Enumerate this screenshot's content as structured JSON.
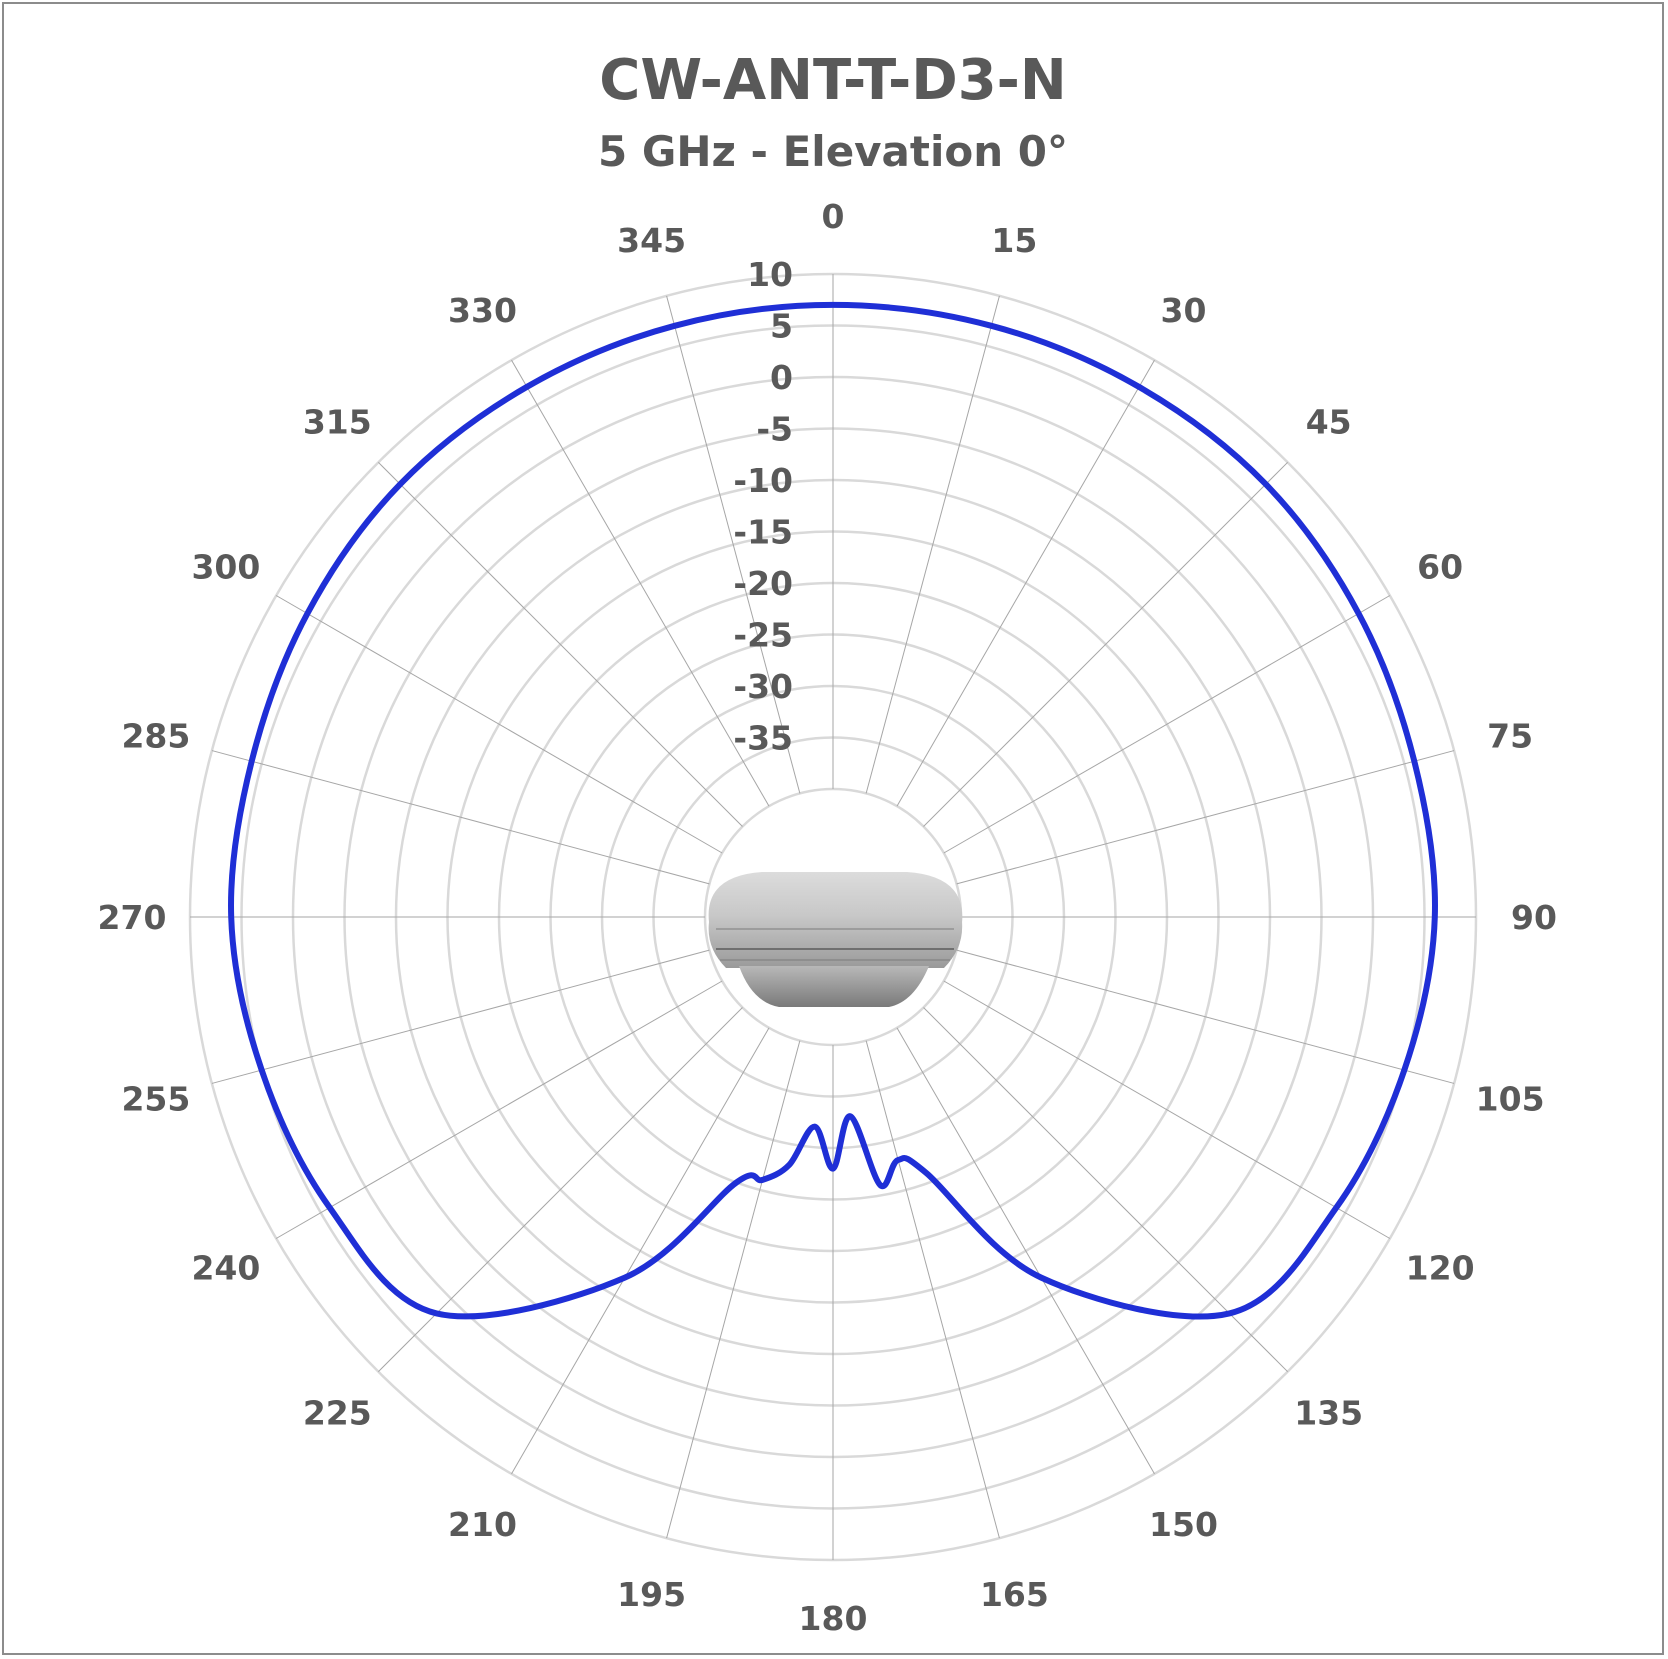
{
  "chart_data": {
    "type": "polar",
    "title": "CW-ANT-T-D3-N",
    "subtitle": "5 GHz - Elevation 0°",
    "angle_labels": [
      "0",
      "15",
      "30",
      "45",
      "60",
      "75",
      "90",
      "105",
      "120",
      "135",
      "150",
      "165",
      "180",
      "195",
      "210",
      "225",
      "240",
      "255",
      "270",
      "285",
      "300",
      "315",
      "330",
      "345"
    ],
    "radial_labels": [
      "10",
      "5",
      "0",
      "-5",
      "-10",
      "-15",
      "-20",
      "-25",
      "-30",
      "-35"
    ],
    "rlim": [
      -40,
      10
    ],
    "grid": true,
    "series": [
      {
        "color": "#1f2fd6",
        "theta": [
          0,
          15,
          30,
          45,
          60,
          75,
          90,
          105,
          120,
          135,
          150,
          160,
          165,
          170,
          175,
          180,
          185,
          190,
          195,
          200,
          210,
          225,
          240,
          255,
          270,
          285,
          300,
          315,
          330,
          345
        ],
        "r": [
          7,
          7,
          7,
          7,
          6.5,
          6,
          6,
          5,
          4,
          2,
          -12,
          -26,
          -28,
          -26,
          -33,
          -28,
          -32,
          -28,
          -26,
          -25,
          -12,
          2,
          4,
          5,
          6,
          6,
          6.5,
          7,
          7,
          7
        ]
      }
    ]
  },
  "colors": {
    "series": "#1f2fd6",
    "grid": "#d9d9d9",
    "text": "#595959"
  },
  "image": {
    "name": "antenna-device-image"
  }
}
